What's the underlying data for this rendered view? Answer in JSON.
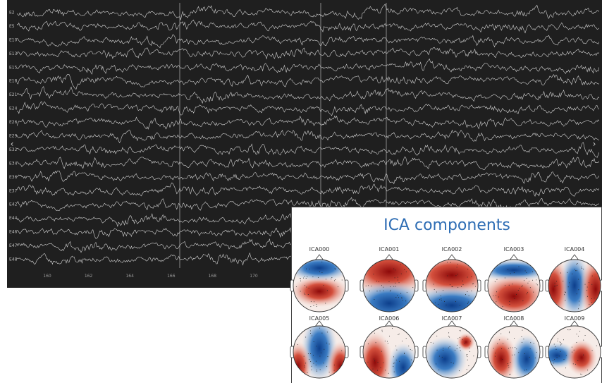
{
  "eeg_viewer": {
    "channels": [
      "E2",
      "E5",
      "E10",
      "E13",
      "E15",
      "E18",
      "E21",
      "E24",
      "E26",
      "E29",
      "E32",
      "E34",
      "E36",
      "E37",
      "E42",
      "E44",
      "E46",
      "E47",
      "E48"
    ],
    "x_ticks": [
      "160",
      "162",
      "164",
      "166",
      "168",
      "170"
    ]
  },
  "ica_panel": {
    "title": "ICA components",
    "components": [
      "ICA000",
      "ICA001",
      "ICA002",
      "ICA003",
      "ICA004",
      "ICA005",
      "ICA006",
      "ICA007",
      "ICA008",
      "ICA009"
    ]
  }
}
